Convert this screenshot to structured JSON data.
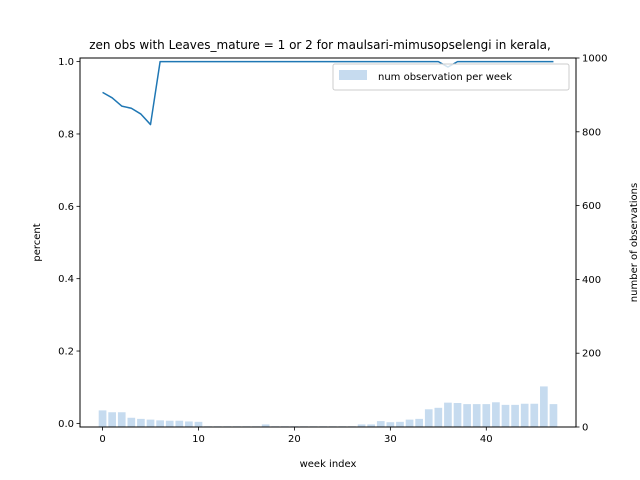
{
  "chart_data": {
    "type": "bar+line",
    "title": "zen obs with Leaves_mature = 1 or 2 for maulsari-mimusopselengi in kerala,",
    "xlabel": "week index",
    "ylabel_left": "percent",
    "ylabel_right": "number of observations",
    "xlim": [
      -2.35,
      49.35
    ],
    "ylim_left": [
      -0.01,
      1.01
    ],
    "ylim_right": [
      0,
      1000
    ],
    "x_ticks": [
      0,
      10,
      20,
      30,
      40
    ],
    "y_ticks_left": [
      0.0,
      0.2,
      0.4,
      0.6,
      0.8,
      1.0
    ],
    "y_ticks_right": [
      0,
      200,
      400,
      600,
      800,
      1000
    ],
    "grid": false,
    "legend_position": "upper right",
    "legend": [
      {
        "label": "num observation per week",
        "color": "#c6dbef"
      }
    ],
    "bar_series": {
      "name": "num observation per week",
      "color": "#c6dbef",
      "x": [
        0,
        1,
        2,
        3,
        4,
        5,
        6,
        7,
        8,
        9,
        10,
        11,
        12,
        13,
        14,
        15,
        16,
        17,
        18,
        19,
        20,
        21,
        22,
        23,
        24,
        25,
        26,
        27,
        28,
        29,
        30,
        31,
        32,
        33,
        34,
        35,
        36,
        37,
        38,
        39,
        40,
        41,
        42,
        43,
        44,
        45,
        46,
        47
      ],
      "values": [
        45,
        40,
        40,
        25,
        22,
        20,
        18,
        17,
        17,
        15,
        14,
        2,
        2,
        2,
        2,
        2,
        2,
        7,
        2,
        2,
        2,
        2,
        2,
        2,
        2,
        2,
        2,
        7,
        7,
        16,
        13,
        14,
        20,
        22,
        48,
        52,
        66,
        65,
        62,
        62,
        62,
        67,
        60,
        60,
        63,
        63,
        110,
        62
      ]
    },
    "line_series": {
      "color": "#1f77b4",
      "x": [
        0,
        1,
        2,
        3,
        4,
        5,
        6,
        7,
        8,
        9,
        10,
        11,
        12,
        13,
        14,
        15,
        16,
        17,
        18,
        19,
        20,
        21,
        22,
        23,
        24,
        25,
        26,
        27,
        28,
        29,
        30,
        31,
        32,
        33,
        34,
        35,
        36,
        37,
        38,
        39,
        40,
        41,
        42,
        43,
        44,
        45,
        46,
        47
      ],
      "values": [
        0.915,
        0.9,
        0.877,
        0.871,
        0.855,
        0.826,
        1.0,
        1.0,
        1.0,
        1.0,
        1.0,
        1.0,
        1.0,
        1.0,
        1.0,
        1.0,
        1.0,
        1.0,
        1.0,
        1.0,
        1.0,
        1.0,
        1.0,
        1.0,
        1.0,
        1.0,
        1.0,
        1.0,
        1.0,
        1.0,
        1.0,
        1.0,
        1.0,
        1.0,
        1.0,
        1.0,
        0.985,
        1.0,
        1.0,
        1.0,
        1.0,
        1.0,
        1.0,
        1.0,
        1.0,
        1.0,
        1.0,
        1.0
      ]
    }
  }
}
